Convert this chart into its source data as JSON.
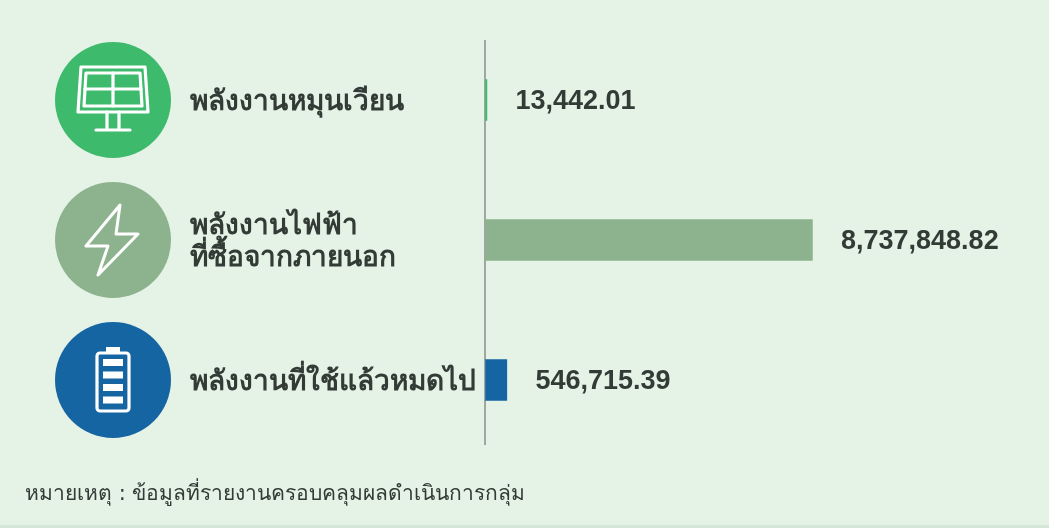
{
  "chart_data": {
    "type": "bar",
    "orientation": "horizontal",
    "categories": [
      "พลังงานหมุนเวียน",
      "พลังงานไฟฟ้า\nที่ซื้อจากภายนอก",
      "พลังงานที่ใช้แล้วหมดไป"
    ],
    "values": [
      13442.01,
      8737848.82,
      546715.39
    ],
    "value_labels": [
      "13,442.01",
      "8,737,848.82",
      "546,715.39"
    ],
    "colors": [
      "#3dba6c",
      "#8db38e",
      "#1565a3"
    ],
    "annotations": [
      "หมายเหตุ : ข้อมูลที่รายงานครอบคลุมผลดำเนินการกลุ่ม"
    ]
  }
}
